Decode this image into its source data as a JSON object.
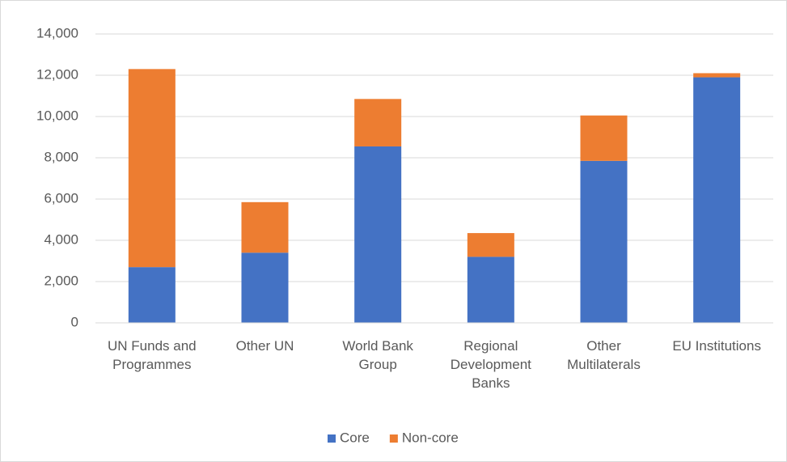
{
  "chart_data": {
    "type": "stacked_bar",
    "categories": [
      "UN Funds and Programmes",
      "Other UN",
      "World Bank Group",
      "Regional Development Banks",
      "Other Multilaterals",
      "EU Institutions"
    ],
    "series": [
      {
        "name": "Core",
        "color": "#4472c4",
        "values": [
          2700,
          3400,
          8550,
          3200,
          7850,
          11900
        ]
      },
      {
        "name": "Non-core",
        "color": "#ed7d31",
        "values": [
          9600,
          2450,
          2300,
          1150,
          2200,
          200
        ]
      }
    ],
    "ylim": [
      0,
      14000
    ],
    "yticks": [
      0,
      {
        "value": 2000,
        "label": "2,000"
      },
      {
        "value": 4000,
        "label": "4,000"
      },
      {
        "value": 6000,
        "label": "6,000"
      },
      {
        "value": 8000,
        "label": "8,000"
      },
      {
        "value": 10000,
        "label": "10,000"
      },
      {
        "value": 12000,
        "label": "12,000"
      },
      {
        "value": 14000,
        "label": "14,000"
      }
    ],
    "grid": true,
    "legend": "bottom"
  }
}
